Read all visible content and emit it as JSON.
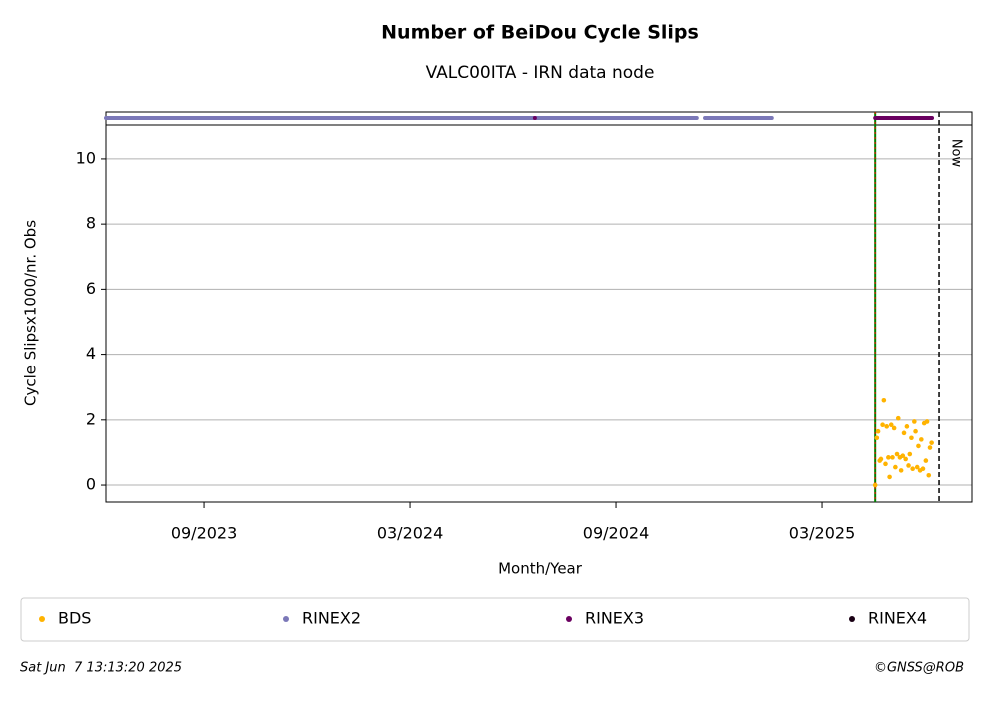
{
  "chart_data": {
    "type": "scatter",
    "title": "Number of BeiDou Cycle Slips",
    "subtitle": "VALC00ITA - IRN data node",
    "xlabel": "Month/Year",
    "ylabel": "Cycle Slipsx1000/nr. Obs",
    "xlim": [
      2023.429,
      2025.531
    ],
    "ylim": [
      -0.52,
      11.04
    ],
    "xticks": [
      {
        "value": 2023.667,
        "label": "09/2023"
      },
      {
        "value": 2024.167,
        "label": "03/2024"
      },
      {
        "value": 2024.667,
        "label": "09/2024"
      },
      {
        "value": 2025.167,
        "label": "03/2025"
      }
    ],
    "yticks": [
      0,
      2,
      4,
      6,
      8,
      10
    ],
    "grid": true,
    "series": [
      {
        "name": "BDS",
        "color": "#ffb300",
        "x": [
          2025.296,
          2025.3,
          2025.303,
          2025.307,
          2025.31,
          2025.314,
          2025.317,
          2025.321,
          2025.324,
          2025.328,
          2025.331,
          2025.335,
          2025.338,
          2025.342,
          2025.345,
          2025.349,
          2025.352,
          2025.356,
          2025.359,
          2025.363,
          2025.366,
          2025.37,
          2025.373,
          2025.377,
          2025.38,
          2025.384,
          2025.387,
          2025.391,
          2025.394,
          2025.398,
          2025.401,
          2025.405,
          2025.408,
          2025.412,
          2025.415,
          2025.419,
          2025.422,
          2025.426,
          2025.429,
          2025.433
        ],
        "values": [
          0.0,
          1.45,
          1.65,
          0.75,
          0.8,
          1.85,
          2.6,
          0.65,
          1.8,
          0.85,
          0.25,
          1.85,
          0.85,
          1.75,
          0.55,
          0.95,
          2.05,
          0.85,
          0.45,
          0.9,
          1.6,
          0.8,
          1.8,
          0.6,
          0.95,
          1.45,
          0.5,
          1.95,
          1.65,
          0.55,
          1.2,
          0.45,
          1.4,
          0.5,
          1.9,
          0.75,
          1.95,
          0.3,
          1.15,
          1.3
        ]
      },
      {
        "name": "RINEX2",
        "color": "#7b78b8",
        "segments": [
          [
            2023.429,
            2024.863
          ],
          [
            2024.883,
            2025.045
          ]
        ]
      },
      {
        "name": "RINEX3",
        "color": "#6a0060",
        "segments": [
          [
            2024.47,
            2024.47
          ],
          [
            2025.296,
            2025.434
          ]
        ]
      },
      {
        "name": "RINEX4",
        "color": "#1a0014",
        "segments": []
      }
    ],
    "vline": 2025.296,
    "now": {
      "label": "Now",
      "x": 2025.451
    },
    "footer_left": "Sat Jun  7 13:13:20 2025",
    "footer_right": "©GNSS@ROB"
  }
}
